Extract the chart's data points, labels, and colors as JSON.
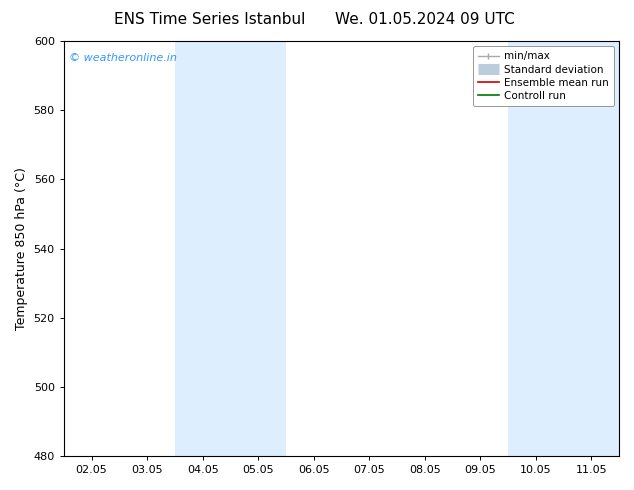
{
  "title_left": "ENS Time Series Istanbul",
  "title_right": "We. 01.05.2024 09 UTC",
  "ylabel": "Temperature 850 hPa (°C)",
  "ylim": [
    480,
    600
  ],
  "yticks": [
    480,
    500,
    520,
    540,
    560,
    580,
    600
  ],
  "x_labels": [
    "02.05",
    "03.05",
    "04.05",
    "05.05",
    "06.05",
    "07.05",
    "08.05",
    "09.05",
    "10.05",
    "11.05"
  ],
  "x_values": [
    0,
    1,
    2,
    3,
    4,
    5,
    6,
    7,
    8,
    9
  ],
  "xlim": [
    -0.5,
    9.5
  ],
  "shaded_bands": [
    {
      "x_start": 1.5,
      "x_end": 3.5,
      "color": "#ddeeff"
    },
    {
      "x_start": 7.5,
      "x_end": 9.5,
      "color": "#ddeeff"
    }
  ],
  "watermark_text": "© weatheronline.in",
  "watermark_color": "#3399ff",
  "legend_entries": [
    {
      "label": "min/max",
      "color": "#aaaaaa",
      "lw": 1.0,
      "style": "minmax"
    },
    {
      "label": "Standard deviation",
      "color": "#bbccdd",
      "lw": 8,
      "style": "band"
    },
    {
      "label": "Ensemble mean run",
      "color": "#cc0000",
      "lw": 1.2,
      "style": "line"
    },
    {
      "label": "Controll run",
      "color": "#007700",
      "lw": 1.2,
      "style": "line"
    }
  ],
  "bg_color": "#ffffff",
  "title_fontsize": 11,
  "axis_fontsize": 9,
  "tick_fontsize": 8,
  "legend_fontsize": 7.5
}
